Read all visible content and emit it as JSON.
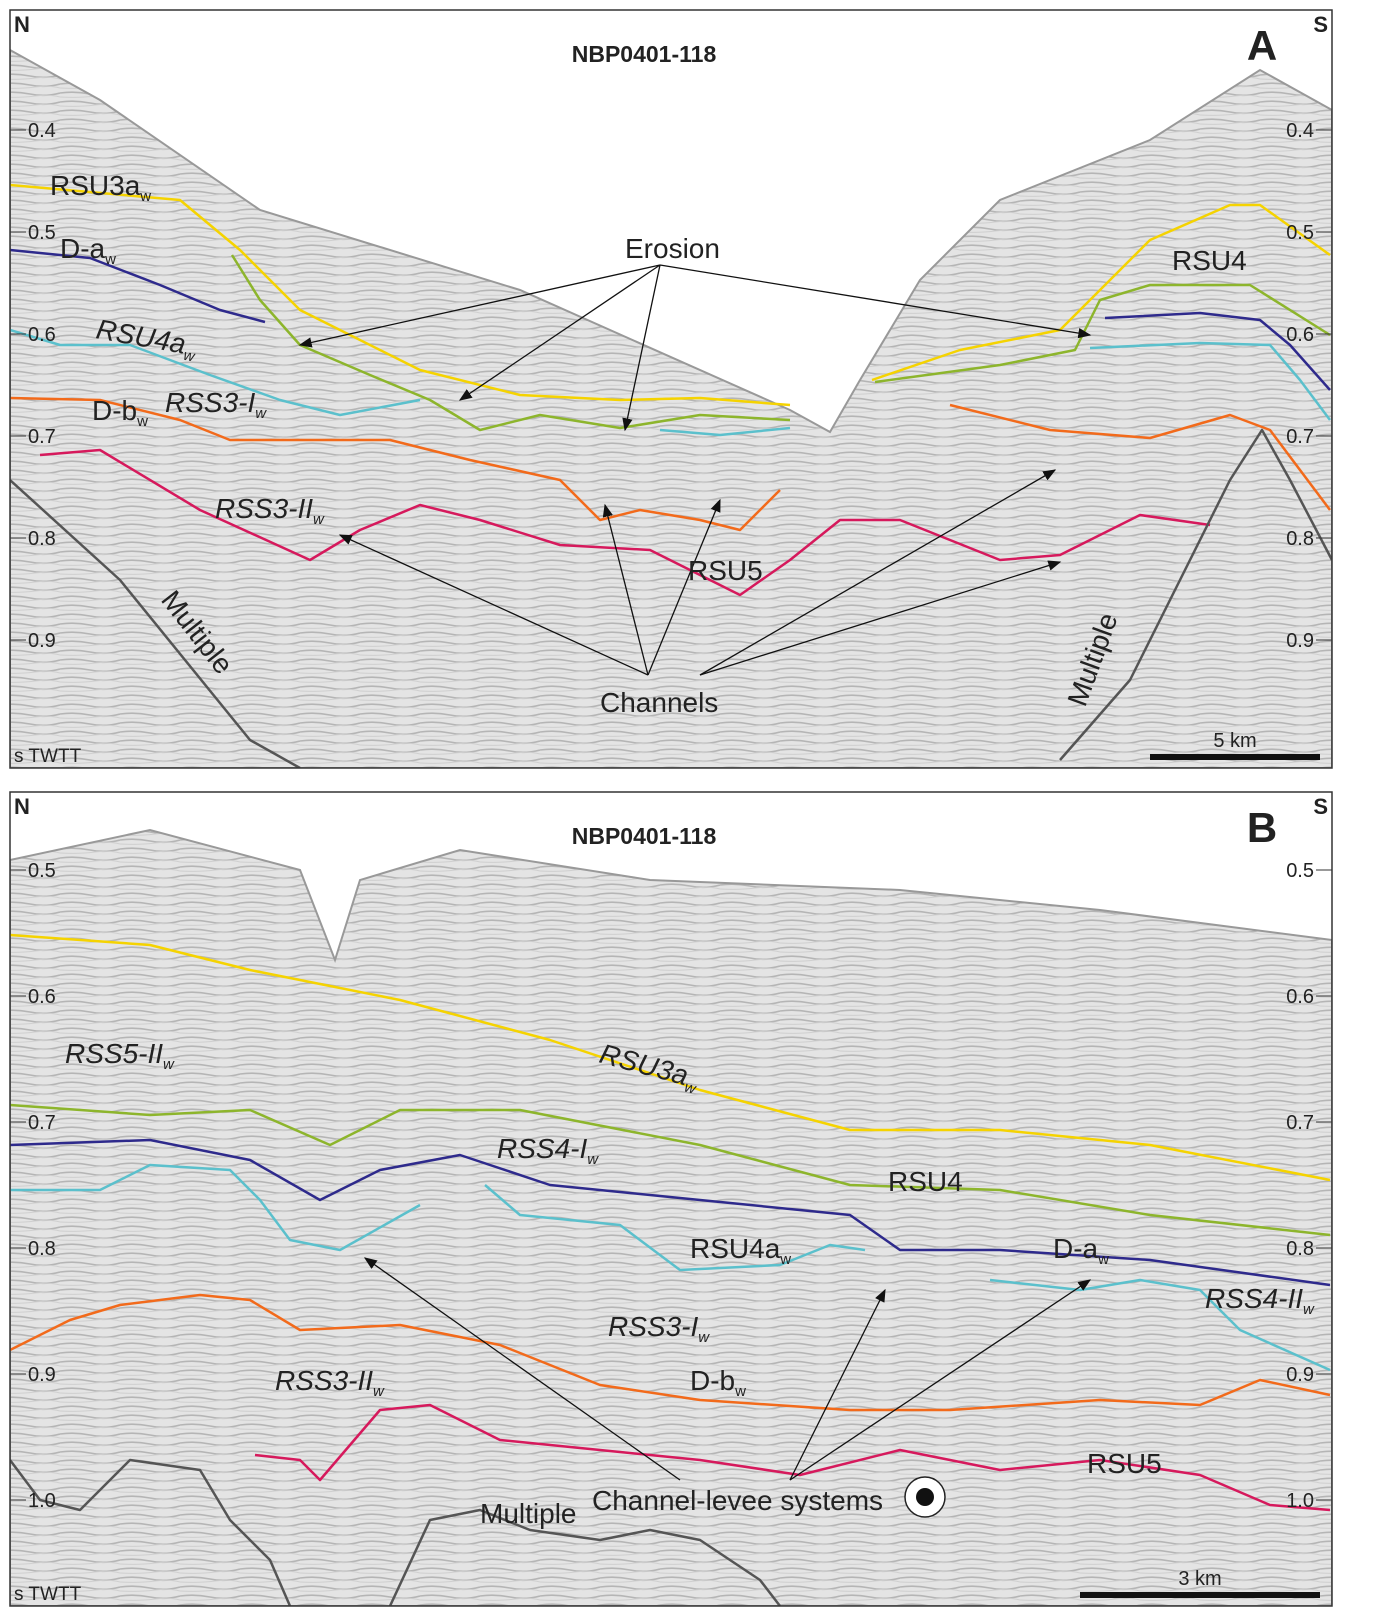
{
  "panels": [
    {
      "letter": "A",
      "title": "NBP0401-118",
      "north": "N",
      "south": "S",
      "ticks_left": [
        "0.4",
        "0.5",
        "0.6",
        "0.7",
        "0.8",
        "0.9"
      ],
      "ticks_right": [
        "0.4",
        "0.5",
        "0.6",
        "0.7",
        "0.8",
        "0.9"
      ],
      "axis_label": "s TWTT",
      "scale_bar": "5 km",
      "labels": [
        {
          "text": "RSU3a",
          "sub": "w"
        },
        {
          "text": "D-a",
          "sub": "w"
        },
        {
          "text": "RSU4a",
          "sub": "w"
        },
        {
          "text": "D-b",
          "sub": "w"
        },
        {
          "text": "RSS3-I",
          "sub": "w"
        },
        {
          "text": "RSS3-II",
          "sub": "w"
        },
        {
          "text": "Erosion"
        },
        {
          "text": "RSU4"
        },
        {
          "text": "RSU5"
        },
        {
          "text": "Channels"
        },
        {
          "text": "Multiple"
        },
        {
          "text": "Multiple"
        }
      ]
    },
    {
      "letter": "B",
      "title": "NBP0401-118",
      "north": "N",
      "south": "S",
      "ticks_left": [
        "0.5",
        "0.6",
        "0.7",
        "0.8",
        "0.9",
        "1.0"
      ],
      "ticks_right": [
        "0.5",
        "0.6",
        "0.7",
        "0.8",
        "0.9",
        "1.0"
      ],
      "axis_label": "s TWTT",
      "scale_bar": "3 km",
      "labels": [
        {
          "text": "RSS5-II",
          "sub": "w"
        },
        {
          "text": "RSU3a",
          "sub": "w"
        },
        {
          "text": "RSS4-I",
          "sub": "w"
        },
        {
          "text": "RSU4"
        },
        {
          "text": "RSU4a",
          "sub": "w"
        },
        {
          "text": "D-a",
          "sub": "w"
        },
        {
          "text": "RSS4-II",
          "sub": "w"
        },
        {
          "text": "RSS3-I",
          "sub": "w"
        },
        {
          "text": "RSS3-II",
          "sub": "w"
        },
        {
          "text": "D-b",
          "sub": "w"
        },
        {
          "text": "RSU5"
        },
        {
          "text": "Channel-levee systems"
        },
        {
          "text": "Multiple"
        }
      ]
    }
  ]
}
